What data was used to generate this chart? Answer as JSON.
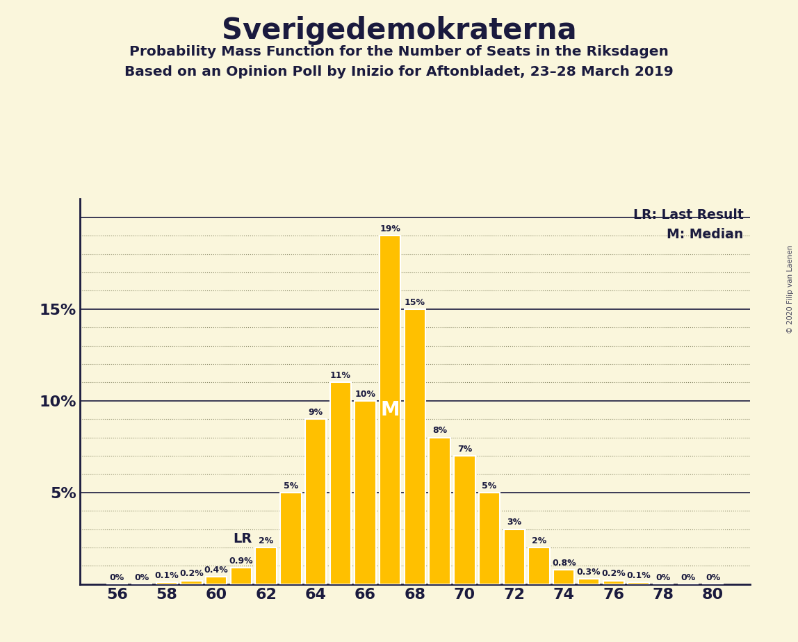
{
  "title": "Sverigedemokraterna",
  "subtitle1": "Probability Mass Function for the Number of Seats in the Riksdagen",
  "subtitle2": "Based on an Opinion Poll by Inizio for Aftonbladet, 23–28 March 2019",
  "copyright": "© 2020 Filip van Laenen",
  "background_color": "#faf6dc",
  "bar_color": "#ffc000",
  "bar_edge_color": "#ffffff",
  "text_color": "#1a1a3e",
  "seats": [
    56,
    57,
    58,
    59,
    60,
    61,
    62,
    63,
    64,
    65,
    66,
    67,
    68,
    69,
    70,
    71,
    72,
    73,
    74,
    75,
    76,
    77,
    78,
    79,
    80
  ],
  "probabilities": [
    0.0,
    0.0,
    0.1,
    0.2,
    0.4,
    0.9,
    2.0,
    5.0,
    9.0,
    11.0,
    10.0,
    19.0,
    15.0,
    8.0,
    7.0,
    5.0,
    3.0,
    2.0,
    0.8,
    0.3,
    0.2,
    0.1,
    0.0,
    0.0,
    0.0
  ],
  "labels": [
    "0%",
    "0%",
    "0.1%",
    "0.2%",
    "0.4%",
    "0.9%",
    "2%",
    "5%",
    "9%",
    "11%",
    "10%",
    "19%",
    "15%",
    "8%",
    "7%",
    "5%",
    "3%",
    "2%",
    "0.8%",
    "0.3%",
    "0.2%",
    "0.1%",
    "0%",
    "0%",
    "0%"
  ],
  "median_seat": 67,
  "last_result_seat": 62,
  "ylim_max": 21.0,
  "ytick_major": [
    5,
    10,
    15
  ],
  "ytick_minor_step": 1,
  "xticks": [
    56,
    58,
    60,
    62,
    64,
    66,
    68,
    70,
    72,
    74,
    76,
    78,
    80
  ],
  "lr_label": "LR: Last Result",
  "median_label": "M: Median",
  "grid_major_color": "#1a1a3e",
  "grid_minor_color": "#888866",
  "grid_major_lw": 1.2,
  "grid_minor_lw": 0.8
}
